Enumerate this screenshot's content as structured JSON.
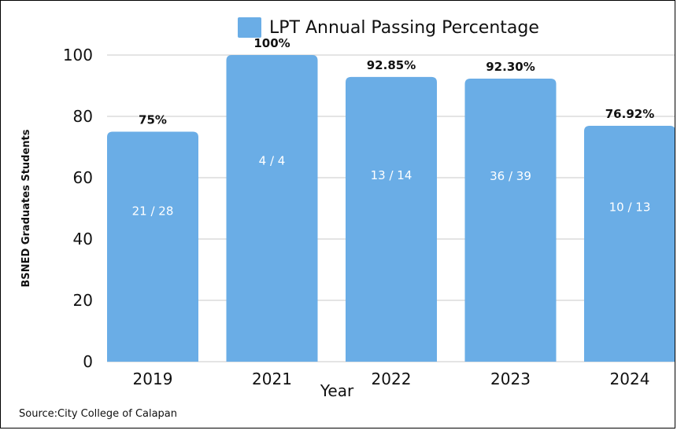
{
  "chart_data": {
    "type": "bar",
    "title": "",
    "legend": {
      "entries": [
        "LPT Annual Passing Percentage"
      ],
      "placement": "top-center"
    },
    "categories": [
      "2019",
      "2021",
      "2022",
      "2023",
      "2024"
    ],
    "series": [
      {
        "name": "LPT Annual Passing Percentage",
        "values": [
          75,
          100,
          92.85,
          92.3,
          76.92
        ],
        "value_labels": [
          "75%",
          "100%",
          "92.85%",
          "92.30%",
          "76.92%"
        ],
        "inner_labels": [
          "21 / 28",
          "4 / 4",
          "13 / 14",
          "36 / 39",
          "10 / 13"
        ],
        "color": "#6aade6"
      }
    ],
    "xlabel": "Year",
    "ylabel": "BSNED Graduates Students",
    "ylim": [
      0,
      100
    ],
    "yticks": [
      0,
      20,
      40,
      60,
      80,
      100
    ],
    "grid": true,
    "source": "Source:City College of Calapan"
  }
}
